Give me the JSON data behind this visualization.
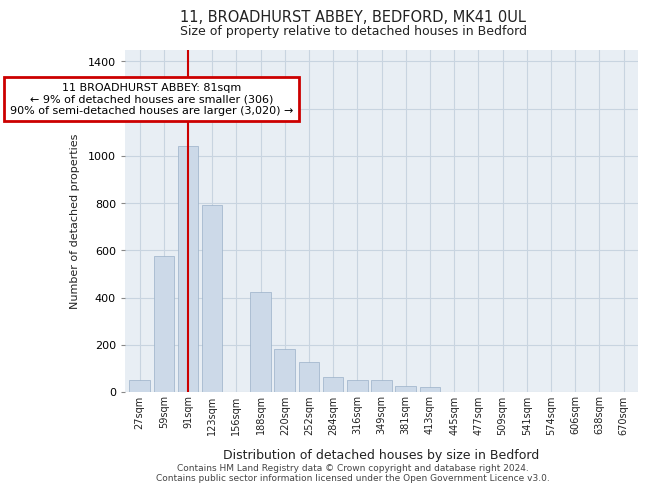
{
  "title1": "11, BROADHURST ABBEY, BEDFORD, MK41 0UL",
  "title2": "Size of property relative to detached houses in Bedford",
  "xlabel": "Distribution of detached houses by size in Bedford",
  "ylabel": "Number of detached properties",
  "footer1": "Contains HM Land Registry data © Crown copyright and database right 2024.",
  "footer2": "Contains public sector information licensed under the Open Government Licence v3.0.",
  "annotation_line1": "11 BROADHURST ABBEY: 81sqm",
  "annotation_line2": "← 9% of detached houses are smaller (306)",
  "annotation_line3": "90% of semi-detached houses are larger (3,020) →",
  "bar_color": "#ccd9e8",
  "bar_edge_color": "#9ab0c8",
  "vline_color": "#cc0000",
  "annotation_box_edgecolor": "#cc0000",
  "grid_color": "#c8d4e0",
  "background_color": "#e8eef4",
  "fig_background": "#ffffff",
  "categories": [
    "27sqm",
    "59sqm",
    "91sqm",
    "123sqm",
    "156sqm",
    "188sqm",
    "220sqm",
    "252sqm",
    "284sqm",
    "316sqm",
    "349sqm",
    "381sqm",
    "413sqm",
    "445sqm",
    "477sqm",
    "509sqm",
    "541sqm",
    "574sqm",
    "606sqm",
    "638sqm",
    "670sqm"
  ],
  "values": [
    50,
    575,
    1040,
    790,
    0,
    425,
    180,
    125,
    65,
    50,
    50,
    25,
    22,
    0,
    0,
    0,
    0,
    0,
    0,
    0,
    0
  ],
  "ylim": [
    0,
    1450
  ],
  "yticks": [
    0,
    200,
    400,
    600,
    800,
    1000,
    1200,
    1400
  ],
  "vline_x_index": 2
}
